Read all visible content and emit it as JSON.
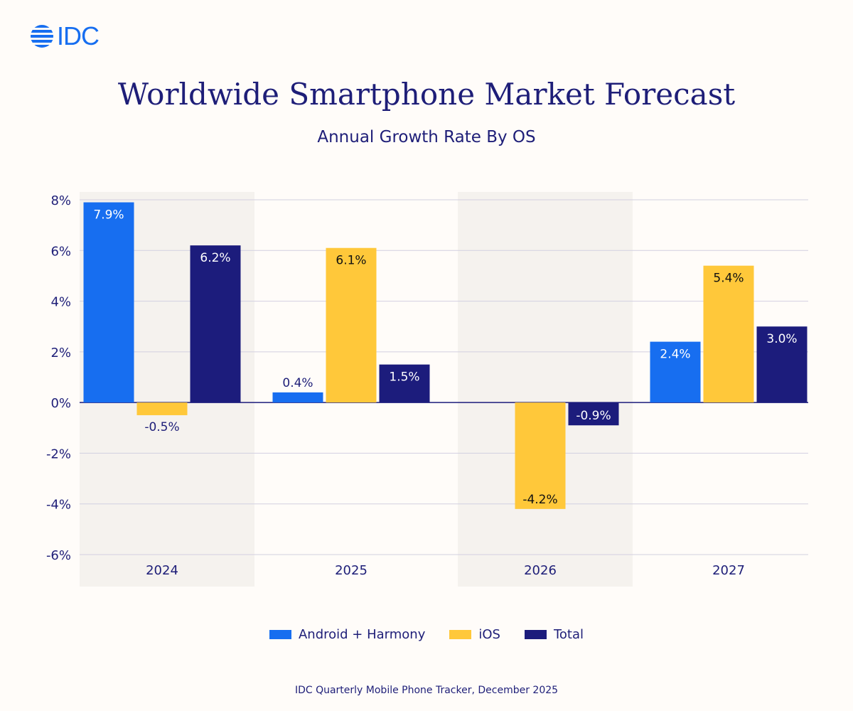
{
  "logo": {
    "text": "IDC"
  },
  "colors": {
    "android": "#176ef0",
    "ios": "#ffc83a",
    "total": "#1c1c7c",
    "band": "#f5f2ee",
    "grid": "#d2cfe0"
  },
  "chart_data": {
    "type": "bar",
    "title": "Worldwide Smartphone Market Forecast",
    "subtitle": "Annual Growth Rate By OS",
    "categories": [
      "2024",
      "2025",
      "2026",
      "2027"
    ],
    "series": [
      {
        "name": "Android + Harmony",
        "values": [
          7.9,
          0.4,
          0.0,
          2.4
        ]
      },
      {
        "name": "iOS",
        "values": [
          -0.5,
          6.1,
          -4.2,
          5.4
        ]
      },
      {
        "name": "Total",
        "values": [
          6.2,
          1.5,
          -0.9,
          3.0
        ]
      }
    ],
    "data_labels": [
      [
        "7.9%",
        "0.4%",
        "",
        "2.4%"
      ],
      [
        "-0.5%",
        "6.1%",
        "-4.2%",
        "5.4%"
      ],
      [
        "6.2%",
        "1.5%",
        "-0.9%",
        "3.0%"
      ]
    ],
    "yticks": [
      8,
      6,
      4,
      2,
      0,
      -2,
      -4,
      -6
    ],
    "ytick_labels": [
      "8%",
      "6%",
      "4%",
      "2%",
      "0%",
      "-2%",
      "-4%",
      "-6%"
    ],
    "ylim": [
      -6,
      8
    ],
    "grid": true,
    "legend": "bottom",
    "unit": "%"
  },
  "source": "IDC Quarterly Mobile Phone Tracker, December 2025"
}
